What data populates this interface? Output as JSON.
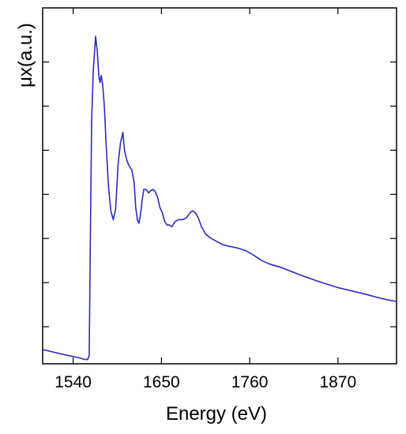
{
  "chart_data": {
    "type": "line",
    "title": "",
    "xlabel": "Energy (eV)",
    "ylabel": "μx(a.u.)",
    "xlim": [
      1502,
      1943
    ],
    "ylim": [
      0,
      1
    ],
    "x_ticks": [
      1540,
      1650,
      1760,
      1870
    ],
    "x_tick_labels": [
      "1540",
      "1650",
      "1760",
      "1870"
    ],
    "y_ticks": [
      0.104,
      0.228,
      0.352,
      0.476,
      0.6,
      0.724,
      0.848
    ],
    "y_tick_labels_shown": false,
    "grid": false,
    "legend": "none",
    "colors": {
      "line": "#2b2bbd",
      "axes": "#000000"
    },
    "series": [
      {
        "x": [
          1502,
          1515,
          1530,
          1545,
          1555,
          1558,
          1560,
          1561.5,
          1563,
          1565,
          1568,
          1570,
          1572,
          1573.5,
          1575,
          1577,
          1579,
          1581,
          1584,
          1587,
          1590,
          1593,
          1596,
          1599,
          1602,
          1604,
          1607,
          1610,
          1613,
          1616,
          1618,
          1620,
          1622,
          1624,
          1626,
          1628,
          1631,
          1634,
          1636,
          1639,
          1642,
          1645,
          1648,
          1651,
          1654,
          1657,
          1660,
          1663,
          1667,
          1672,
          1677,
          1681,
          1686,
          1689,
          1692,
          1696,
          1700,
          1705,
          1710,
          1718,
          1726,
          1735,
          1745,
          1755,
          1765,
          1775,
          1785,
          1800,
          1820,
          1845,
          1870,
          1900,
          1925,
          1943
        ],
        "y": [
          0.04,
          0.033,
          0.025,
          0.018,
          0.012,
          0.012,
          0.022,
          0.35,
          0.68,
          0.82,
          0.92,
          0.88,
          0.81,
          0.79,
          0.81,
          0.78,
          0.72,
          0.62,
          0.5,
          0.43,
          0.405,
          0.435,
          0.56,
          0.62,
          0.65,
          0.6,
          0.57,
          0.555,
          0.545,
          0.51,
          0.44,
          0.405,
          0.395,
          0.42,
          0.46,
          0.49,
          0.49,
          0.48,
          0.485,
          0.49,
          0.485,
          0.47,
          0.44,
          0.425,
          0.4,
          0.39,
          0.39,
          0.385,
          0.4,
          0.405,
          0.405,
          0.41,
          0.425,
          0.43,
          0.425,
          0.41,
          0.385,
          0.365,
          0.355,
          0.345,
          0.335,
          0.33,
          0.325,
          0.318,
          0.305,
          0.29,
          0.28,
          0.27,
          0.252,
          0.232,
          0.214,
          0.198,
          0.183,
          0.175
        ]
      }
    ]
  }
}
